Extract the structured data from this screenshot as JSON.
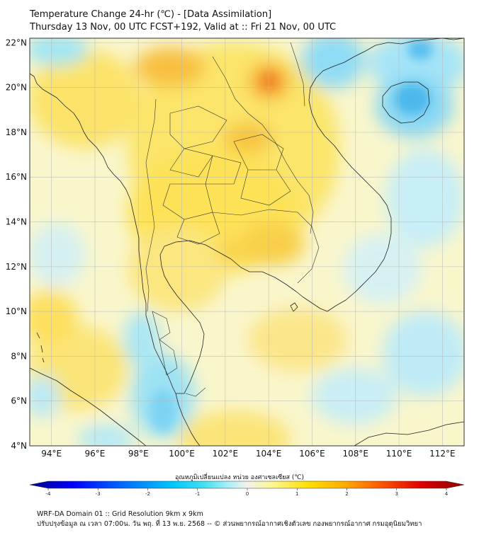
{
  "header": {
    "title_line1": "Temperature Change 24-hr (℃) - [Data Assimilation]",
    "title_line2": "Thursday 13 Nov, 00 UTC FCST+192, Valid at :: Fri 21 Nov, 00 UTC"
  },
  "map": {
    "lat_ticks": [
      {
        "value": 22,
        "label": "22°N"
      },
      {
        "value": 20,
        "label": "20°N"
      },
      {
        "value": 18,
        "label": "18°N"
      },
      {
        "value": 16,
        "label": "16°N"
      },
      {
        "value": 14,
        "label": "14°N"
      },
      {
        "value": 12,
        "label": "12°N"
      },
      {
        "value": 10,
        "label": "10°N"
      },
      {
        "value": 8,
        "label": "8°N"
      },
      {
        "value": 6,
        "label": "6°N"
      },
      {
        "value": 4,
        "label": "4°N"
      }
    ],
    "lon_ticks": [
      {
        "value": 94,
        "label": "94°E"
      },
      {
        "value": 96,
        "label": "96°E"
      },
      {
        "value": 98,
        "label": "98°E"
      },
      {
        "value": 100,
        "label": "100°E"
      },
      {
        "value": 102,
        "label": "102°E"
      },
      {
        "value": 104,
        "label": "104°E"
      },
      {
        "value": 106,
        "label": "106°E"
      },
      {
        "value": 108,
        "label": "108°E"
      },
      {
        "value": 110,
        "label": "110°E"
      },
      {
        "value": 112,
        "label": "112°E"
      }
    ],
    "lon_range": [
      93,
      113
    ],
    "lat_range": [
      4,
      22.2
    ]
  },
  "colorbar": {
    "label": "อุณหภูมิเปลี่ยนแปลง หน่วย องศาเซลเซียส (℃)",
    "ticks": [
      "-4",
      "-3",
      "-2",
      "-1",
      "0",
      "1",
      "2",
      "3",
      "4"
    ],
    "range": [
      -4,
      4
    ],
    "colors": [
      "#00008b",
      "#0000ff",
      "#0070ff",
      "#00c8ff",
      "#40e0f0",
      "#aef0f8",
      "#f2f2ee",
      "#fff590",
      "#ffe000",
      "#ffb000",
      "#ff6000",
      "#e00000",
      "#8b0000"
    ]
  },
  "footer": {
    "line1": "WRF-DA Domain 01 :: Grid Resolution 9km x 9km",
    "line2": "ปรับปรุงข้อมูล ณ เวลา 07:00น. วัน พฤ. ที่ 13 พ.ย. 2568 -- © ส่วนพยากรณ์อากาศเชิงตัวเลข กองพยากรณ์อากาศ กรมอุตุนิยมวิทยา"
  }
}
